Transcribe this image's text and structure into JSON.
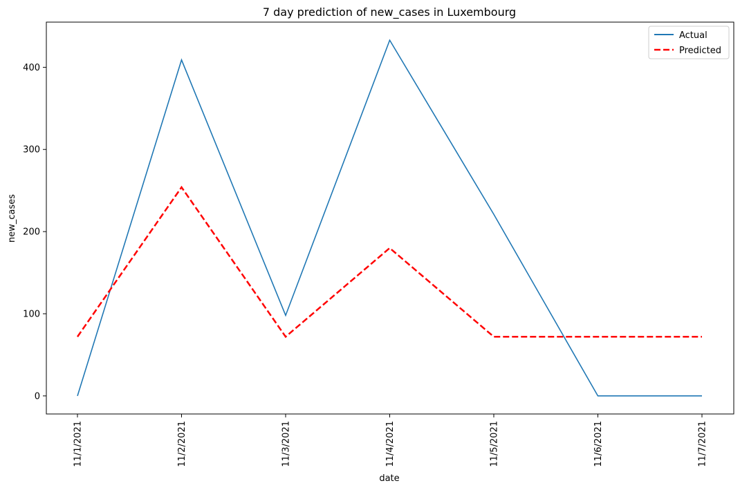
{
  "chart_data": {
    "type": "line",
    "title": "7 day prediction of new_cases in Luxembourg",
    "xlabel": "date",
    "ylabel": "new_cases",
    "categories": [
      "11/1/2021",
      "11/2/2021",
      "11/3/2021",
      "11/4/2021",
      "11/5/2021",
      "11/6/2021",
      "11/7/2021"
    ],
    "yticks": [
      0,
      100,
      200,
      300,
      400
    ],
    "ylim": [
      -22,
      455
    ],
    "legend_position": "top-right",
    "series": [
      {
        "name": "Actual",
        "color": "#1f77b4",
        "style": "solid",
        "values": [
          0,
          409,
          98,
          433,
          221,
          0,
          0
        ]
      },
      {
        "name": "Predicted",
        "color": "#ff0000",
        "style": "dashed",
        "values": [
          72,
          254,
          72,
          180,
          72,
          72,
          72
        ]
      }
    ]
  }
}
